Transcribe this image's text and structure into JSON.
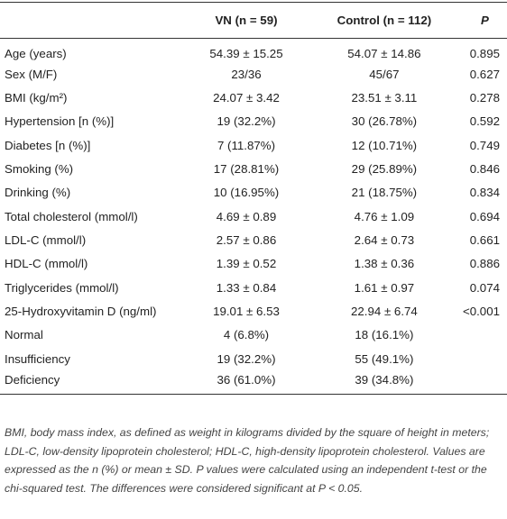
{
  "table": {
    "header": [
      "",
      "VN (n = 59)",
      "Control (n = 112)",
      "P"
    ],
    "rows": [
      [
        "Age (years)",
        "54.39 ± 15.25",
        "54.07 ± 14.86",
        "0.895"
      ],
      [
        "Sex (M/F)",
        "23/36",
        "45/67",
        "0.627"
      ],
      [
        "BMI (kg/m²)",
        "24.07 ± 3.42",
        "23.51 ± 3.11",
        "0.278"
      ],
      [
        "Hypertension [n (%)]",
        "19 (32.2%)",
        "30 (26.78%)",
        "0.592"
      ],
      [
        "Diabetes [n (%)]",
        "7 (11.87%)",
        "12 (10.71%)",
        "0.749"
      ],
      [
        "Smoking (%)",
        "17 (28.81%)",
        "29 (25.89%)",
        "0.846"
      ],
      [
        "Drinking (%)",
        "10 (16.95%)",
        "21 (18.75%)",
        "0.834"
      ],
      [
        "Total cholesterol (mmol/l)",
        "4.69 ± 0.89",
        "4.76 ± 1.09",
        "0.694"
      ],
      [
        "LDL-C (mmol/l)",
        "2.57 ± 0.86",
        "2.64 ± 0.73",
        "0.661"
      ],
      [
        "HDL-C (mmol/l)",
        "1.39 ± 0.52",
        "1.38 ± 0.36",
        "0.886"
      ],
      [
        "Triglycerides (mmol/l)",
        "1.33 ± 0.84",
        "1.61 ± 0.97",
        "0.074"
      ],
      [
        "25-Hydroxyvitamin D (ng/ml)",
        "19.01 ± 6.53",
        "22.94 ± 6.74",
        "<0.001"
      ],
      [
        "Normal",
        "4 (6.8%)",
        "18 (16.1%)",
        ""
      ],
      [
        "Insufficiency",
        "19 (32.2%)",
        "55 (49.1%)",
        ""
      ],
      [
        "Deficiency",
        "36 (61.0%)",
        "39 (34.8%)",
        ""
      ]
    ]
  },
  "footnote": "BMI, body mass index, as defined as weight in kilograms divided by the square of height in meters; LDL-C, low-density lipoprotein cholesterol; HDL-C, high-density lipoprotein cholesterol. Values are expressed as the n (%) or mean ± SD. P values were calculated using an independent t-test or the chi-squared test. The differences were considered significant at P < 0.05."
}
